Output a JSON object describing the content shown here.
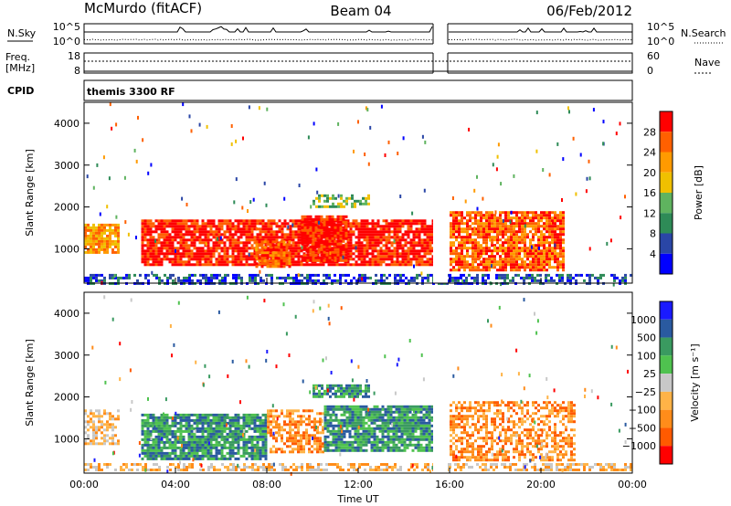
{
  "header": {
    "station": "McMurdo (fitACF)",
    "beam": "Beam 04",
    "date": "06/Feb/2012"
  },
  "top_panels": {
    "nsky_label": "N.Sky",
    "nsearch_label": "N.Search",
    "nsky_ticks": [
      "10^5",
      "10^0"
    ],
    "nsearch_ticks": [
      "10^5",
      "10^0"
    ],
    "freq_label_1": "Freq.",
    "freq_label_2": "[MHz]",
    "freq_ticks": [
      "18",
      "8"
    ],
    "nave_label": "Nave",
    "nave_ticks": [
      "60",
      "0"
    ],
    "cpid_label": "CPID",
    "cpid_value": "themis 3300 RF"
  },
  "colors": {
    "power": [
      "#0000ff",
      "#2a46a6",
      "#2e8b57",
      "#5fb35f",
      "#f0c000",
      "#ff9a00",
      "#ff6000",
      "#ff0000"
    ],
    "velocity": [
      "#ff0000",
      "#ff5a00",
      "#ff8c1a",
      "#ffb347",
      "#c8c8c8",
      "#4fc24f",
      "#3a9a60",
      "#2a5aa0",
      "#1a1aff"
    ]
  },
  "chart_data": [
    {
      "type": "heatmap",
      "panel": "power",
      "ylabel": "Slant Range [km]",
      "xlabel": "",
      "x_ticks": [
        "00:00",
        "04:00",
        "08:00",
        "12:00",
        "16:00",
        "20:00",
        "00:00"
      ],
      "y_ticks": [
        "1000",
        "2000",
        "3000",
        "4000"
      ],
      "ylim": [
        180,
        4500
      ],
      "xlim_hours": [
        0,
        24
      ],
      "data_gap_hours": [
        15.3,
        16.0
      ],
      "colorbar_label": "Power [dB]",
      "colorbar_ticks": [
        "4",
        "8",
        "12",
        "16",
        "20",
        "24",
        "28"
      ],
      "colorbar_range": [
        0,
        32
      ],
      "echo_regions": [
        {
          "t0": 0.0,
          "t1": 1.5,
          "r0": 900,
          "r1": 1600,
          "level": 5
        },
        {
          "t0": 2.5,
          "t1": 15.3,
          "r0": 600,
          "r1": 1700,
          "level": 7
        },
        {
          "t0": 7.5,
          "t1": 9.0,
          "r0": 600,
          "r1": 1200,
          "level": 6
        },
        {
          "t0": 9.5,
          "t1": 11.5,
          "r0": 700,
          "r1": 1800,
          "level": 7
        },
        {
          "t0": 10.0,
          "t1": 12.5,
          "r0": 2000,
          "r1": 2300,
          "level": 3
        },
        {
          "t0": 16.0,
          "t1": 21.0,
          "r0": 500,
          "r1": 1900,
          "level": 6
        },
        {
          "t0": 0.0,
          "t1": 24.0,
          "r0": 200,
          "r1": 400,
          "level": 1
        }
      ]
    },
    {
      "type": "heatmap",
      "panel": "velocity",
      "ylabel": "Slant Range [km]",
      "xlabel": "Time UT",
      "x_ticks": [
        "00:00",
        "04:00",
        "08:00",
        "12:00",
        "16:00",
        "20:00",
        "00:00"
      ],
      "y_ticks": [
        "1000",
        "2000",
        "3000",
        "4000"
      ],
      "ylim": [
        180,
        4500
      ],
      "xlim_hours": [
        0,
        24
      ],
      "data_gap_hours": [
        15.3,
        16.0
      ],
      "colorbar_label": "Velocity [m s⁻¹]",
      "colorbar_ticks": [
        "1000",
        "500",
        "100",
        "25",
        "−25",
        "−100",
        "−500",
        "−1000"
      ],
      "echo_regions": [
        {
          "t0": 0.0,
          "t1": 1.5,
          "r0": 900,
          "r1": 1700,
          "level": 3
        },
        {
          "t0": 2.5,
          "t1": 8.0,
          "r0": 500,
          "r1": 1600,
          "level": 6
        },
        {
          "t0": 8.0,
          "t1": 10.5,
          "r0": 700,
          "r1": 1700,
          "level": 2
        },
        {
          "t0": 10.5,
          "t1": 15.3,
          "r0": 700,
          "r1": 1800,
          "level": 6
        },
        {
          "t0": 10.0,
          "t1": 12.5,
          "r0": 2000,
          "r1": 2300,
          "level": 6
        },
        {
          "t0": 16.0,
          "t1": 21.5,
          "r0": 500,
          "r1": 1900,
          "level": 2
        },
        {
          "t0": 0.0,
          "t1": 24.0,
          "r0": 250,
          "r1": 420,
          "level": 3
        }
      ]
    }
  ]
}
